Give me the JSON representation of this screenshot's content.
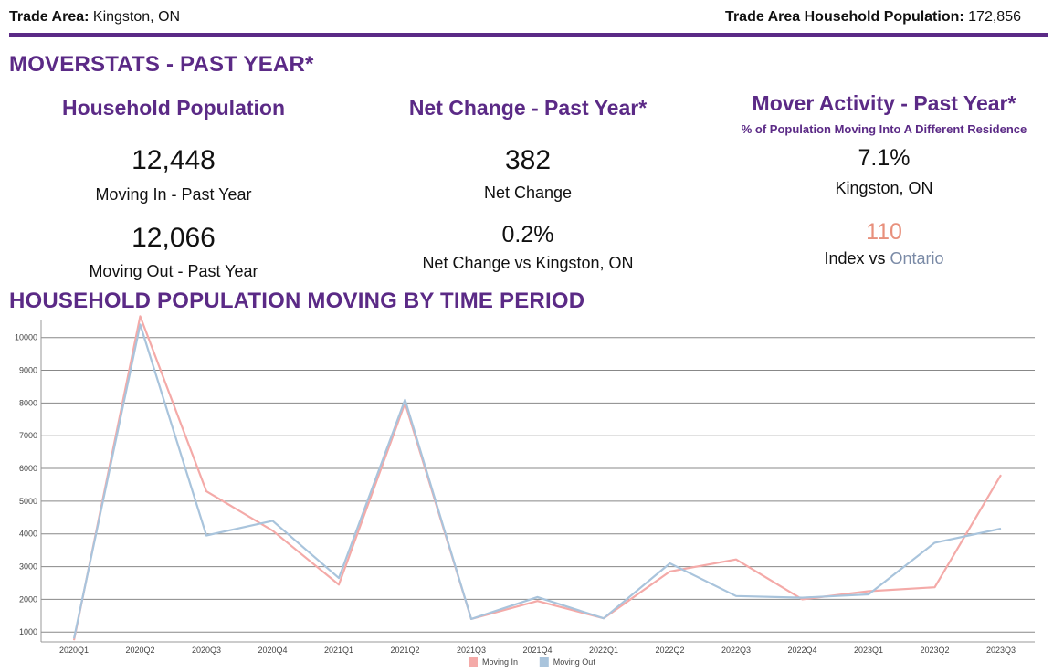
{
  "header": {
    "trade_area_label": "Trade Area:",
    "trade_area_value": "Kingston, ON",
    "hh_pop_label": "Trade Area Household Population:",
    "hh_pop_value": "172,856"
  },
  "colors": {
    "purple": "#5b2a86",
    "salmon": "#e8907c",
    "moving_in": "#f4aaa8",
    "moving_out": "#a9c4dc",
    "grid": "#888888"
  },
  "moverstats": {
    "title": "MOVERSTATS - PAST YEAR*",
    "household_population": {
      "heading": "Household Population",
      "moving_in_value": "12,448",
      "moving_in_label": "Moving In - Past Year",
      "moving_out_value": "12,066",
      "moving_out_label": "Moving Out - Past Year"
    },
    "net_change": {
      "heading": "Net Change - Past Year*",
      "value": "382",
      "label": "Net Change",
      "pct_value": "0.2%",
      "pct_label": "Net Change vs Kingston, ON"
    },
    "mover_activity": {
      "heading": "Mover Activity - Past Year*",
      "subheading": "% of Population Moving Into A Different Residence",
      "value": "7.1%",
      "label": "Kingston, ON",
      "index_value": "110",
      "index_label_prefix": "Index vs",
      "index_label_region": "Ontario"
    }
  },
  "chart_section": {
    "title": "HOUSEHOLD POPULATION MOVING BY TIME PERIOD"
  },
  "chart_data": {
    "type": "line",
    "title": "",
    "xlabel": "",
    "ylabel": "",
    "categories": [
      "2020Q1",
      "2020Q2",
      "2020Q3",
      "2020Q4",
      "2021Q1",
      "2021Q2",
      "2021Q3",
      "2021Q4",
      "2022Q1",
      "2022Q2",
      "2022Q3",
      "2022Q4",
      "2023Q1",
      "2023Q2",
      "2023Q3"
    ],
    "y_ticks": [
      1000,
      2000,
      3000,
      4000,
      5000,
      6000,
      7000,
      8000,
      9000,
      10000
    ],
    "ylim": [
      700,
      10550
    ],
    "grid": true,
    "legend_position": "bottom-center",
    "series": [
      {
        "name": "Moving In",
        "color": "#f4aaa8",
        "values": [
          750,
          10650,
          5300,
          4100,
          2450,
          8000,
          1400,
          1950,
          1420,
          2850,
          3220,
          2000,
          2250,
          2370,
          5800
        ]
      },
      {
        "name": "Moving Out",
        "color": "#a9c4dc",
        "values": [
          800,
          10400,
          3950,
          4400,
          2650,
          8100,
          1400,
          2070,
          1420,
          3100,
          2100,
          2050,
          2150,
          3730,
          4160
        ]
      }
    ]
  }
}
